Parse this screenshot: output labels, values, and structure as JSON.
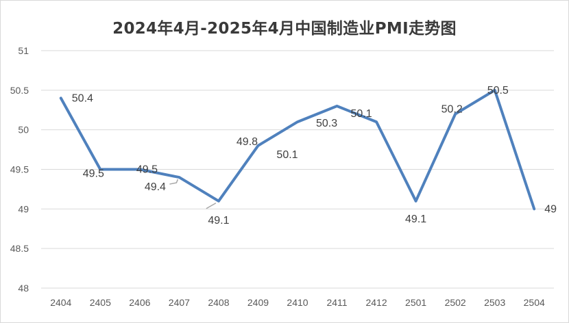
{
  "chart_data": {
    "type": "line",
    "title": "2024年4月-2025年4月中国制造业PMI走势图",
    "categories": [
      "2404",
      "2405",
      "2406",
      "2407",
      "2408",
      "2409",
      "2410",
      "2411",
      "2412",
      "2501",
      "2502",
      "2503",
      "2504"
    ],
    "series": [
      {
        "values": [
          50.4,
          49.5,
          49.5,
          49.4,
          49.1,
          49.8,
          50.1,
          50.3,
          50.1,
          49.1,
          50.2,
          50.5,
          49.0
        ]
      }
    ],
    "data_labels": [
      "50.4",
      "49.5",
      "49.5",
      "49.4",
      "49.1",
      "49.8",
      "50.1",
      "50.3",
      "50.1",
      "49.1",
      "50.2",
      "50.5",
      "49"
    ],
    "y_ticks": [
      "48",
      "48.5",
      "49",
      "49.5",
      "50",
      "50.5",
      "51"
    ],
    "ylim": [
      48,
      51
    ],
    "grid": true,
    "legend": "none",
    "line_color": "#4f81bd"
  }
}
